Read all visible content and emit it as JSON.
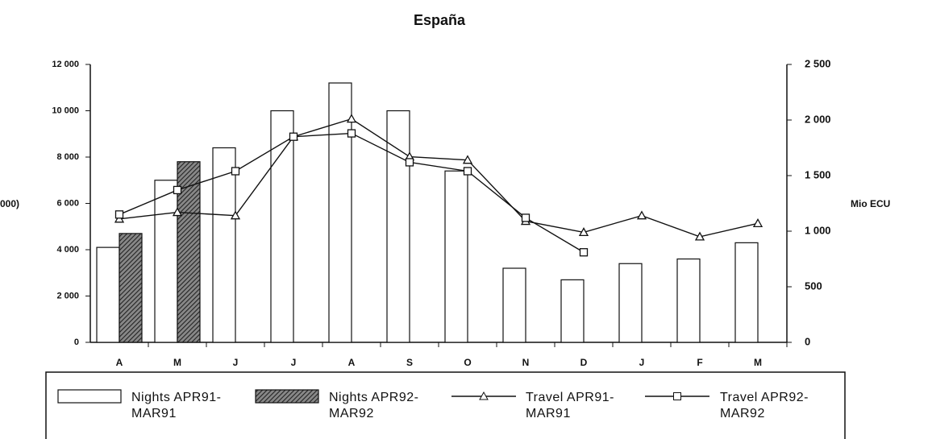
{
  "chart_data": {
    "type": "bar",
    "title": "España",
    "y_label": "000)",
    "y2_label": "Mio ECU",
    "categories": [
      "A",
      "M",
      "J",
      "J",
      "A",
      "S",
      "O",
      "N",
      "D",
      "J",
      "F",
      "M"
    ],
    "ylim": [
      0,
      12000
    ],
    "yticks": [
      {
        "value": 0,
        "label": "0"
      },
      {
        "value": 2000,
        "label": "2 000"
      },
      {
        "value": 4000,
        "label": "4 000"
      },
      {
        "value": 6000,
        "label": "6 000"
      },
      {
        "value": 8000,
        "label": "8 000"
      },
      {
        "value": 10000,
        "label": "10 000"
      },
      {
        "value": 12000,
        "label": "12 000"
      }
    ],
    "y2lim": [
      0,
      2500
    ],
    "y2ticks": [
      {
        "value": 0,
        "label": "0"
      },
      {
        "value": 500,
        "label": "500"
      },
      {
        "value": 1000,
        "label": "1 000"
      },
      {
        "value": 1500,
        "label": "1 500"
      },
      {
        "value": 2000,
        "label": "2 000"
      },
      {
        "value": 2500,
        "label": "2 500"
      }
    ],
    "series": [
      {
        "name": "Nights APR91-MAR91",
        "type": "bar",
        "color": "#ffffff",
        "values": [
          4100,
          7000,
          8400,
          10000,
          11200,
          10000,
          7400,
          3200,
          2700,
          3400,
          3600,
          4300
        ]
      },
      {
        "name": "Nights APR92-MAR92",
        "type": "bar",
        "color": "#444444",
        "values": [
          4700,
          7800,
          null,
          null,
          null,
          null,
          null,
          null,
          null,
          null,
          null,
          null
        ]
      },
      {
        "name": "Travel APR91-MAR91",
        "type": "line",
        "axis": "y2",
        "marker": "triangle",
        "color": "#111111",
        "values": [
          1110,
          1170,
          1140,
          1850,
          2010,
          1670,
          1640,
          1090,
          990,
          1140,
          950,
          1070
        ]
      },
      {
        "name": "Travel APR92-MAR92",
        "type": "line",
        "axis": "y2",
        "marker": "square",
        "color": "#111111",
        "values": [
          1150,
          1370,
          1540,
          1850,
          1880,
          1620,
          1540,
          1120,
          810,
          null,
          null,
          null
        ]
      }
    ]
  }
}
